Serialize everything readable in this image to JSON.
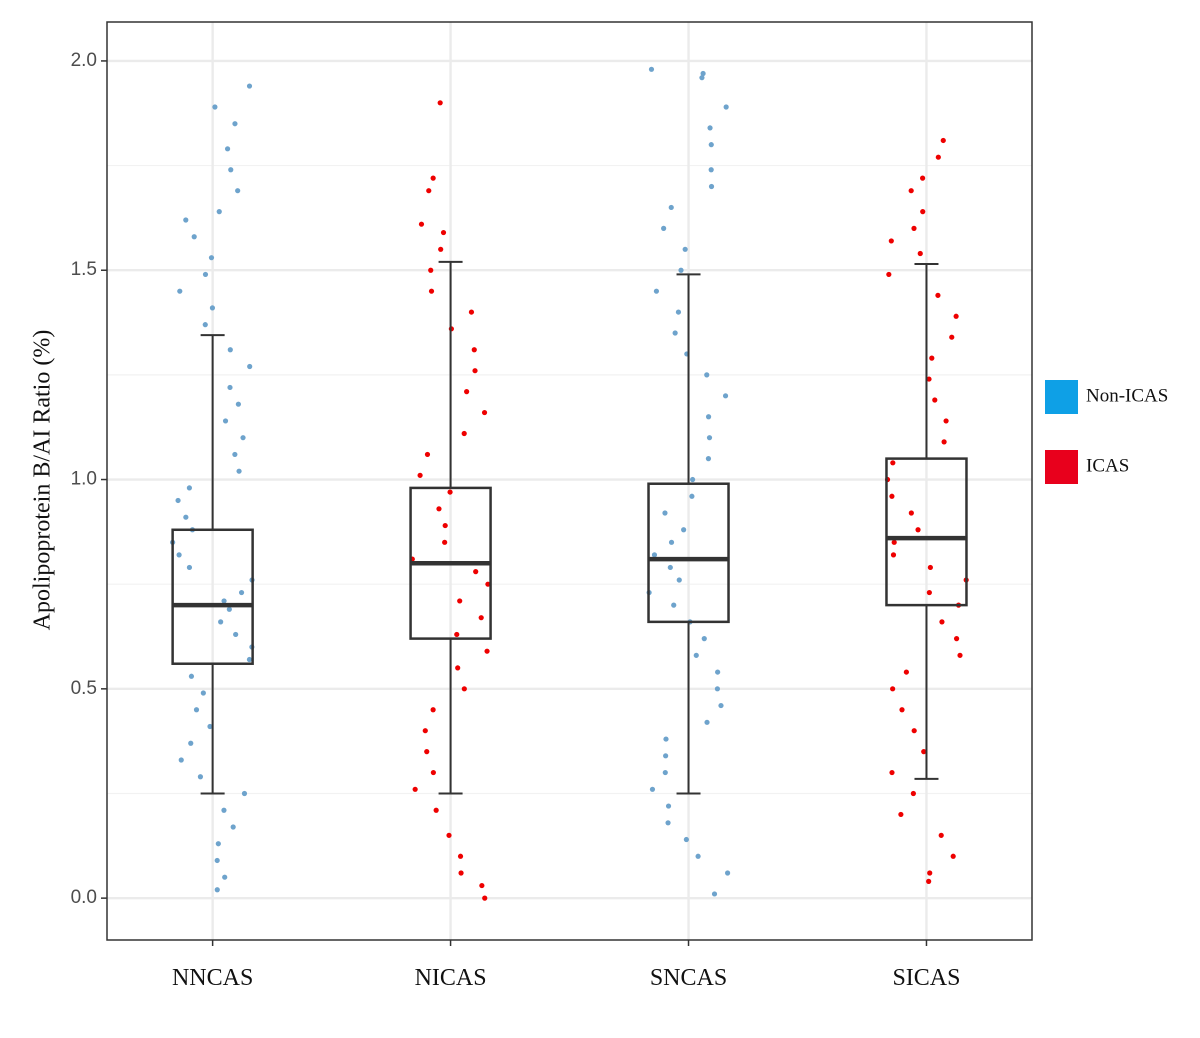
{
  "chart_data": {
    "type": "box",
    "ylabel": "Apolipoprotein B/AI Ratio (%)",
    "categories": [
      "NNCAS",
      "NICAS",
      "SNCAS",
      "SICAS"
    ],
    "ylim": [
      -0.1,
      2.093
    ],
    "yticks": [
      {
        "value": 0,
        "label": "0.0"
      },
      0.5,
      {
        "value": 1,
        "label": "1.0"
      },
      1.5,
      {
        "value": 2,
        "label": "2.0"
      }
    ],
    "yminor": [
      0.25,
      0.75,
      1.25,
      1.75
    ],
    "grid": true,
    "legend": "right",
    "series": [
      {
        "name": "Non-ICAS",
        "color": "#6ea3cc",
        "legend_color": "#0ea0e6"
      },
      {
        "name": "ICAS",
        "color": "#ee0000",
        "legend_color": "#e8001c"
      }
    ],
    "point_series": [
      0,
      1,
      0,
      1
    ],
    "stats": [
      [
        0.25,
        0.56,
        0.7,
        0.88,
        1.345
      ],
      [
        0.25,
        0.62,
        0.8,
        0.98,
        1.52
      ],
      [
        0.25,
        0.66,
        0.81,
        0.99,
        1.49
      ],
      [
        0.285,
        0.7,
        0.86,
        1.05,
        1.515
      ]
    ],
    "points": [
      [
        1.94,
        1.89,
        1.85,
        1.79,
        1.74,
        1.69,
        1.64,
        1.62,
        1.58,
        1.53,
        1.49,
        1.45,
        1.41,
        1.37,
        1.31,
        1.27,
        1.22,
        1.18,
        1.14,
        1.1,
        1.06,
        1.02,
        0.98,
        0.95,
        0.91,
        0.88,
        0.85,
        0.82,
        0.79,
        0.76,
        0.73,
        0.71,
        0.69,
        0.66,
        0.63,
        0.6,
        0.57,
        0.53,
        0.49,
        0.45,
        0.41,
        0.37,
        0.33,
        0.29,
        0.25,
        0.21,
        0.17,
        0.13,
        0.09,
        0.05,
        0.02
      ],
      [
        1.9,
        1.72,
        1.69,
        1.61,
        1.59,
        1.55,
        1.5,
        1.45,
        1.4,
        1.36,
        1.31,
        1.26,
        1.21,
        1.16,
        1.11,
        1.06,
        1.01,
        0.97,
        0.93,
        0.89,
        0.85,
        0.81,
        0.78,
        0.75,
        0.71,
        0.67,
        0.63,
        0.59,
        0.55,
        0.5,
        0.45,
        0.4,
        0.35,
        0.3,
        0.26,
        0.21,
        0.15,
        0.1,
        0.06,
        0.03,
        0.0
      ],
      [
        1.98,
        1.97,
        1.96,
        1.89,
        1.84,
        1.8,
        1.74,
        1.7,
        1.65,
        1.6,
        1.55,
        1.5,
        1.45,
        1.4,
        1.35,
        1.3,
        1.25,
        1.2,
        1.15,
        1.1,
        1.05,
        1.0,
        0.96,
        0.92,
        0.88,
        0.85,
        0.82,
        0.79,
        0.76,
        0.73,
        0.7,
        0.66,
        0.62,
        0.58,
        0.54,
        0.5,
        0.46,
        0.42,
        0.38,
        0.34,
        0.3,
        0.26,
        0.22,
        0.18,
        0.14,
        0.1,
        0.06,
        0.01
      ],
      [
        1.81,
        1.77,
        1.72,
        1.69,
        1.64,
        1.6,
        1.57,
        1.54,
        1.49,
        1.44,
        1.39,
        1.34,
        1.29,
        1.24,
        1.19,
        1.14,
        1.09,
        1.04,
        1.0,
        0.96,
        0.92,
        0.88,
        0.85,
        0.82,
        0.79,
        0.76,
        0.73,
        0.7,
        0.66,
        0.62,
        0.58,
        0.54,
        0.5,
        0.45,
        0.4,
        0.35,
        0.3,
        0.25,
        0.2,
        0.15,
        0.1,
        0.06,
        0.04
      ]
    ]
  }
}
